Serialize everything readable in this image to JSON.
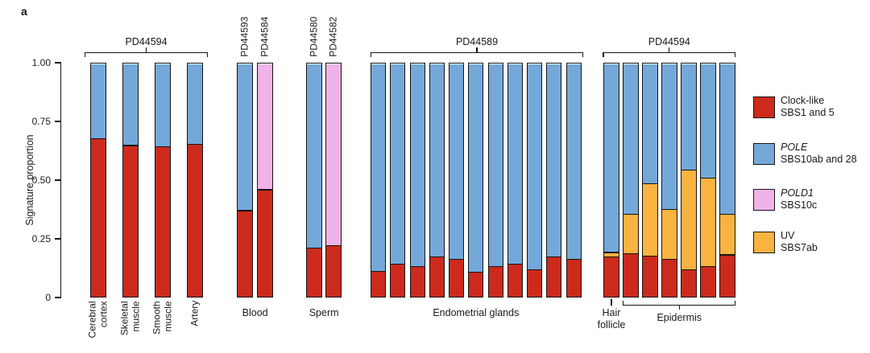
{
  "panel_label": "a",
  "colors": {
    "clock": "#cc2a1c",
    "pole": "#74a8d9",
    "pold1": "#efb3e7",
    "uv": "#f9b341",
    "axis": "#151515"
  },
  "signature_names": {
    "clock": "Clock-like SBS1 and 5",
    "pole": "POLE SBS10ab and 28",
    "pold1": "POLD1 SBS10c",
    "uv": "UV SBS7ab"
  },
  "legend": {
    "items": [
      {
        "key": "clock",
        "line1": "Clock-like",
        "line1_italic": false,
        "line2": "SBS1 and 5"
      },
      {
        "key": "pole",
        "line1": "POLE",
        "line1_italic": true,
        "line2": "SBS10ab and 28"
      },
      {
        "key": "pold1",
        "line1": "POLD1",
        "line1_italic": true,
        "line2": "SBS10c"
      },
      {
        "key": "uv",
        "line1": "UV",
        "line1_italic": false,
        "line2": "SBS7ab"
      }
    ]
  },
  "chart_data": {
    "type": "bar",
    "stacked": true,
    "title": "",
    "xlabel": "",
    "ylabel": "Signature proportion",
    "ylim": [
      0,
      1
    ],
    "grid": false,
    "legend_position": "right",
    "y_ticks": [
      {
        "label": "1.00",
        "value": 1.0
      },
      {
        "label": "0.75",
        "value": 0.75
      },
      {
        "label": "0.50",
        "value": 0.5
      },
      {
        "label": "0.25",
        "value": 0.25
      },
      {
        "label": "0",
        "value": 0.0
      }
    ],
    "groups": [
      {
        "id": "pd44594-tissues",
        "top_bracket_label": "PD44594",
        "bars": [
          {
            "label": "Cerebral cortex",
            "label_lines": [
              "Cerebral",
              "cortex"
            ],
            "segments": [
              {
                "sig": "clock",
                "value": 0.68
              },
              {
                "sig": "pole",
                "value": 0.32
              }
            ]
          },
          {
            "label": "Skeletal muscle",
            "label_lines": [
              "Skeletal",
              "muscle"
            ],
            "segments": [
              {
                "sig": "clock",
                "value": 0.65
              },
              {
                "sig": "pole",
                "value": 0.35
              }
            ]
          },
          {
            "label": "Smooth muscle",
            "label_lines": [
              "Smooth",
              "muscle"
            ],
            "segments": [
              {
                "sig": "clock",
                "value": 0.645
              },
              {
                "sig": "pole",
                "value": 0.355
              }
            ]
          },
          {
            "label": "Artery",
            "label_lines": [
              "Artery"
            ],
            "segments": [
              {
                "sig": "clock",
                "value": 0.655
              },
              {
                "sig": "pole",
                "value": 0.345
              }
            ]
          }
        ]
      },
      {
        "id": "blood",
        "group_label": "Blood",
        "bars": [
          {
            "top_label": "PD44593",
            "segments": [
              {
                "sig": "clock",
                "value": 0.37
              },
              {
                "sig": "pole",
                "value": 0.63
              }
            ]
          },
          {
            "top_label": "PD44584",
            "segments": [
              {
                "sig": "clock",
                "value": 0.46
              },
              {
                "sig": "pold1",
                "value": 0.54
              }
            ]
          }
        ]
      },
      {
        "id": "sperm",
        "group_label": "Sperm",
        "bars": [
          {
            "top_label": "PD44580",
            "segments": [
              {
                "sig": "clock",
                "value": 0.21
              },
              {
                "sig": "pole",
                "value": 0.79
              }
            ]
          },
          {
            "top_label": "PD44582",
            "segments": [
              {
                "sig": "clock",
                "value": 0.22
              },
              {
                "sig": "pold1",
                "value": 0.78
              }
            ]
          }
        ]
      },
      {
        "id": "endometrial-glands",
        "top_bracket_label": "PD44589",
        "group_label": "Endometrial glands",
        "bars": [
          {
            "segments": [
              {
                "sig": "clock",
                "value": 0.11
              },
              {
                "sig": "pole",
                "value": 0.89
              }
            ]
          },
          {
            "segments": [
              {
                "sig": "clock",
                "value": 0.14
              },
              {
                "sig": "pole",
                "value": 0.86
              }
            ]
          },
          {
            "segments": [
              {
                "sig": "clock",
                "value": 0.13
              },
              {
                "sig": "pole",
                "value": 0.87
              }
            ]
          },
          {
            "segments": [
              {
                "sig": "clock",
                "value": 0.17
              },
              {
                "sig": "pole",
                "value": 0.83
              }
            ]
          },
          {
            "segments": [
              {
                "sig": "clock",
                "value": 0.16
              },
              {
                "sig": "pole",
                "value": 0.84
              }
            ]
          },
          {
            "segments": [
              {
                "sig": "clock",
                "value": 0.105
              },
              {
                "sig": "pole",
                "value": 0.895
              }
            ]
          },
          {
            "segments": [
              {
                "sig": "clock",
                "value": 0.13
              },
              {
                "sig": "pole",
                "value": 0.87
              }
            ]
          },
          {
            "segments": [
              {
                "sig": "clock",
                "value": 0.14
              },
              {
                "sig": "pole",
                "value": 0.86
              }
            ]
          },
          {
            "segments": [
              {
                "sig": "clock",
                "value": 0.115
              },
              {
                "sig": "pole",
                "value": 0.885
              }
            ]
          },
          {
            "segments": [
              {
                "sig": "clock",
                "value": 0.17
              },
              {
                "sig": "pole",
                "value": 0.83
              }
            ]
          },
          {
            "segments": [
              {
                "sig": "clock",
                "value": 0.16
              },
              {
                "sig": "pole",
                "value": 0.84
              }
            ]
          }
        ]
      },
      {
        "id": "skin-pd44594",
        "top_bracket_label": "PD44594",
        "bars": [
          {
            "segments": [
              {
                "sig": "clock",
                "value": 0.17
              },
              {
                "sig": "uv",
                "value": 0.02
              },
              {
                "sig": "pole",
                "value": 0.81
              }
            ]
          },
          {
            "segments": [
              {
                "sig": "clock",
                "value": 0.185
              },
              {
                "sig": "uv",
                "value": 0.17
              },
              {
                "sig": "pole",
                "value": 0.645
              }
            ]
          },
          {
            "segments": [
              {
                "sig": "clock",
                "value": 0.175
              },
              {
                "sig": "uv",
                "value": 0.31
              },
              {
                "sig": "pole",
                "value": 0.515
              }
            ]
          },
          {
            "segments": [
              {
                "sig": "clock",
                "value": 0.16
              },
              {
                "sig": "uv",
                "value": 0.215
              },
              {
                "sig": "pole",
                "value": 0.625
              }
            ]
          },
          {
            "segments": [
              {
                "sig": "clock",
                "value": 0.115
              },
              {
                "sig": "uv",
                "value": 0.43
              },
              {
                "sig": "pole",
                "value": 0.455
              }
            ]
          },
          {
            "segments": [
              {
                "sig": "clock",
                "value": 0.13
              },
              {
                "sig": "uv",
                "value": 0.38
              },
              {
                "sig": "pole",
                "value": 0.49
              }
            ]
          },
          {
            "segments": [
              {
                "sig": "clock",
                "value": 0.18
              },
              {
                "sig": "uv",
                "value": 0.175
              },
              {
                "sig": "pole",
                "value": 0.645
              }
            ]
          }
        ],
        "sub_labels": [
          {
            "label_lines": [
              "Hair",
              "follicle"
            ],
            "bar_indices": [
              0
            ],
            "bracket": false
          },
          {
            "label_lines": [
              "Epidermis"
            ],
            "bar_indices": [
              1,
              2,
              3,
              4,
              5,
              6
            ],
            "bracket": true
          }
        ]
      }
    ]
  }
}
